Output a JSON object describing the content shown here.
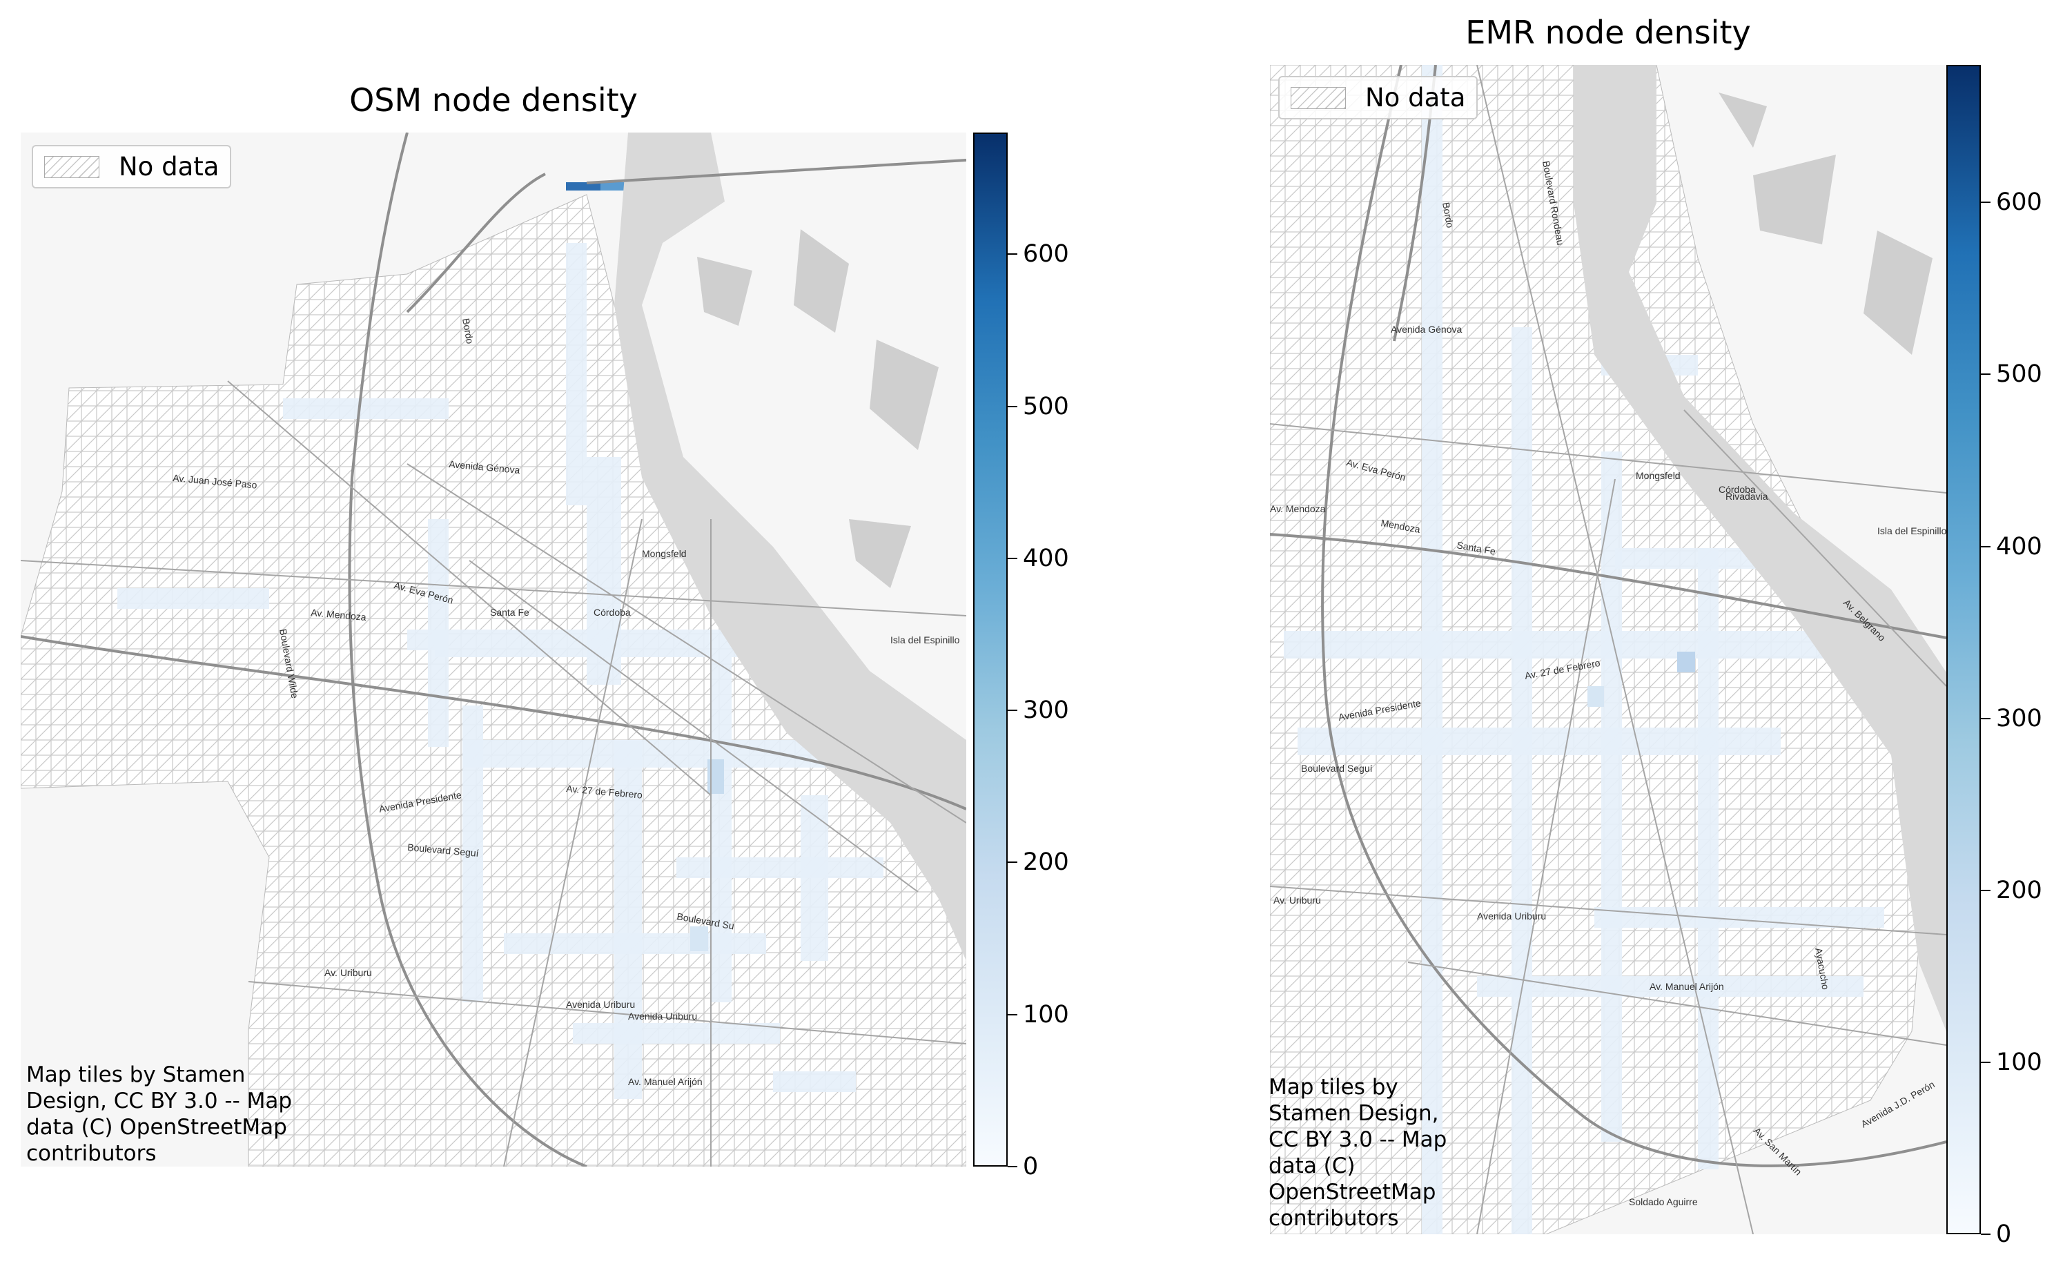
{
  "panels": [
    {
      "title": "OSM node density",
      "legend_label": "No data",
      "attribution": [
        "Map tiles by Stamen",
        "Design, CC BY 3.0 -- Map",
        "data (C) OpenStreetMap",
        "contributors"
      ],
      "colorbar": {
        "min": 0,
        "max": 680,
        "ticks": [
          "0",
          "100",
          "200",
          "300",
          "400",
          "500",
          "600"
        ]
      },
      "street_labels": [
        "Av. Juan José Paso",
        "Avenida Génova",
        "Av. Eva Perón",
        "Av. Mendoza",
        "Santa Fe",
        "Córdoba",
        "Mongsfeld",
        "Avenida Presidente",
        "Av. 27 de Febrero",
        "Boulevard Seguí",
        "Av. Uriburu",
        "Avenida Uriburu",
        "Avenida Uriburu",
        "Av. Manuel Arijón",
        "Isla del Espinillo",
        "Bordo",
        "Boulevard Wilde",
        "Boulevard Su"
      ]
    },
    {
      "title": "EMR node density",
      "legend_label": "No data",
      "attribution": [
        "Map tiles by",
        "Stamen Design,",
        "CC BY 3.0 -- Map",
        "data (C)",
        "OpenStreetMap",
        "contributors"
      ],
      "colorbar": {
        "min": 0,
        "max": 680,
        "ticks": [
          "0",
          "100",
          "200",
          "300",
          "400",
          "500",
          "600"
        ]
      },
      "street_labels": [
        "Bordo",
        "Boulevard Rondeau",
        "Avenida Génova",
        "Av. Eva Perón",
        "Av. Mendoza",
        "Mendoza",
        "Santa Fe",
        "Córdoba",
        "Mongsfeld",
        "Rivadavia",
        "Isla del Espinillo",
        "Av. 27 de Febrero",
        "Avenida Presidente",
        "Boulevard Seguí",
        "Av. Uriburu",
        "Avenida Uriburu",
        "Av. Manuel Arijón",
        "Soldado Aguirre",
        "Av. San Martín",
        "Avenida J.D. Perón",
        "Av. Belgrano",
        "Ayacucho"
      ]
    }
  ],
  "colors": {
    "no_data_hatch": "#c9c9c9",
    "river": "#d9d9d9",
    "road": "#8f8f8f",
    "density_low": "#f7fbff",
    "density_high": "#08306b"
  }
}
